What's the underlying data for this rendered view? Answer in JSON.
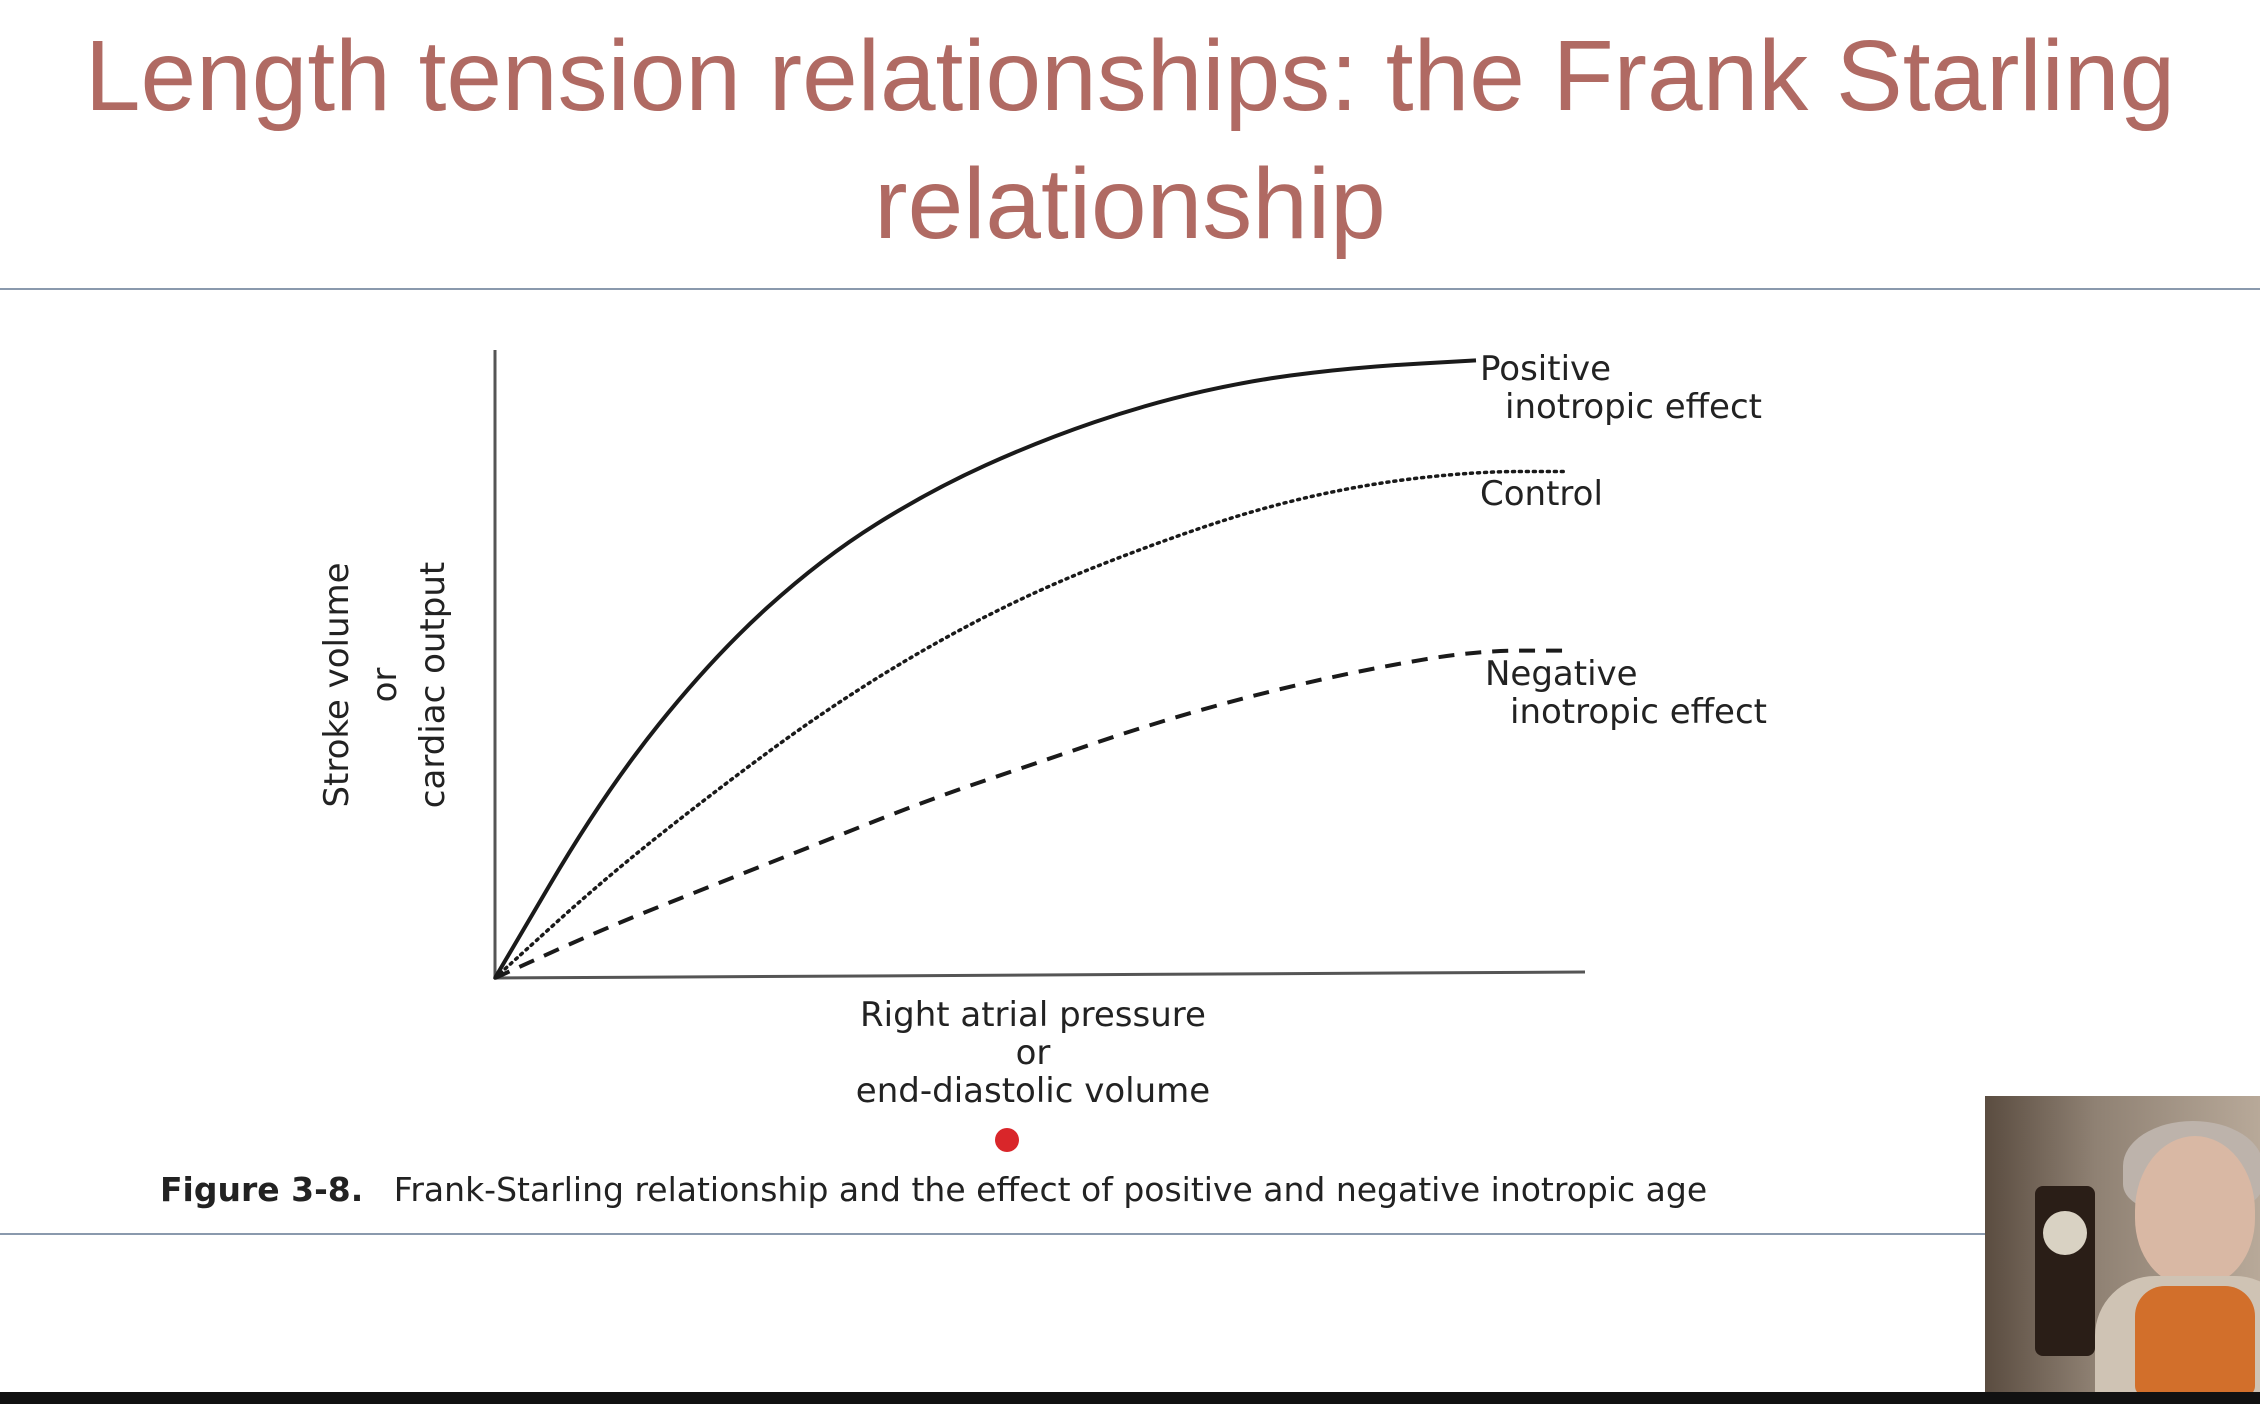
{
  "slide": {
    "title": "Length tension relationships: the Frank Starling relationship",
    "title_color": "#b06a63"
  },
  "chart_data": {
    "type": "line",
    "xlabel_lines": [
      "Right atrial pressure",
      "or",
      "end-diastolic volume"
    ],
    "ylabel_lines": [
      "Stroke volume",
      "or",
      "cardiac output"
    ],
    "series": [
      {
        "name_lines": [
          "Positive",
          "inotropic effect"
        ],
        "style": "solid",
        "x": [
          0,
          0.1,
          0.2,
          0.3,
          0.4,
          0.5,
          0.6,
          0.7,
          0.8,
          0.9
        ],
        "y": [
          0,
          0.3,
          0.52,
          0.68,
          0.79,
          0.87,
          0.93,
          0.97,
          0.99,
          1.0
        ]
      },
      {
        "name_lines": [
          "Control"
        ],
        "style": "dotted",
        "x": [
          0,
          0.1,
          0.2,
          0.3,
          0.4,
          0.5,
          0.6,
          0.7,
          0.8,
          0.9,
          0.98
        ],
        "y": [
          0,
          0.16,
          0.3,
          0.43,
          0.54,
          0.63,
          0.7,
          0.76,
          0.8,
          0.82,
          0.82
        ]
      },
      {
        "name_lines": [
          "Negative",
          "inotropic effect"
        ],
        "style": "dashed",
        "x": [
          0,
          0.1,
          0.2,
          0.3,
          0.4,
          0.5,
          0.6,
          0.7,
          0.8,
          0.9,
          0.98
        ],
        "y": [
          0,
          0.08,
          0.15,
          0.22,
          0.29,
          0.35,
          0.41,
          0.46,
          0.5,
          0.53,
          0.53
        ]
      }
    ],
    "xlim": [
      0,
      1
    ],
    "ylim": [
      0,
      1.02
    ],
    "grid": false
  },
  "caption": {
    "label": "Figure 3-8.",
    "text": "Frank-Starling relationship and the effect of positive and negative inotropic age"
  }
}
